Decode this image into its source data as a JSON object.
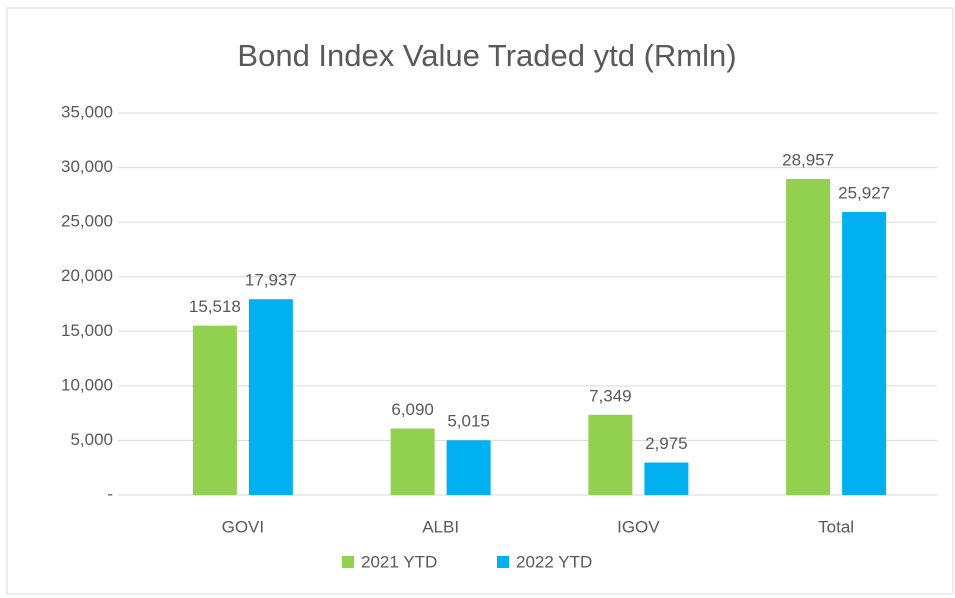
{
  "chart_data": {
    "type": "bar",
    "title": "Bond Index Value Traded ytd (Rmln)",
    "categories": [
      "GOVI",
      "ALBI",
      "IGOV",
      "Total"
    ],
    "series": [
      {
        "name": "2021 YTD",
        "color": "#92d050",
        "values": [
          15518,
          6090,
          7349,
          28957
        ],
        "value_labels": [
          "15,518",
          "6,090",
          "7,349",
          "28,957"
        ]
      },
      {
        "name": "2022 YTD",
        "color": "#00b0f0",
        "values": [
          17937,
          5015,
          2975,
          25927
        ],
        "value_labels": [
          "17,937",
          "5,015",
          "2,975",
          "25,927"
        ]
      }
    ],
    "ylim": [
      0,
      35000
    ],
    "yticks": [
      {
        "value": 0,
        "label": "-"
      },
      {
        "value": 5000,
        "label": "5,000"
      },
      {
        "value": 10000,
        "label": "10,000"
      },
      {
        "value": 15000,
        "label": "15,000"
      },
      {
        "value": 20000,
        "label": "20,000"
      },
      {
        "value": 25000,
        "label": "25,000"
      },
      {
        "value": 30000,
        "label": "30,000"
      },
      {
        "value": 35000,
        "label": "35,000"
      }
    ],
    "grid": true,
    "legend": "bottom"
  }
}
